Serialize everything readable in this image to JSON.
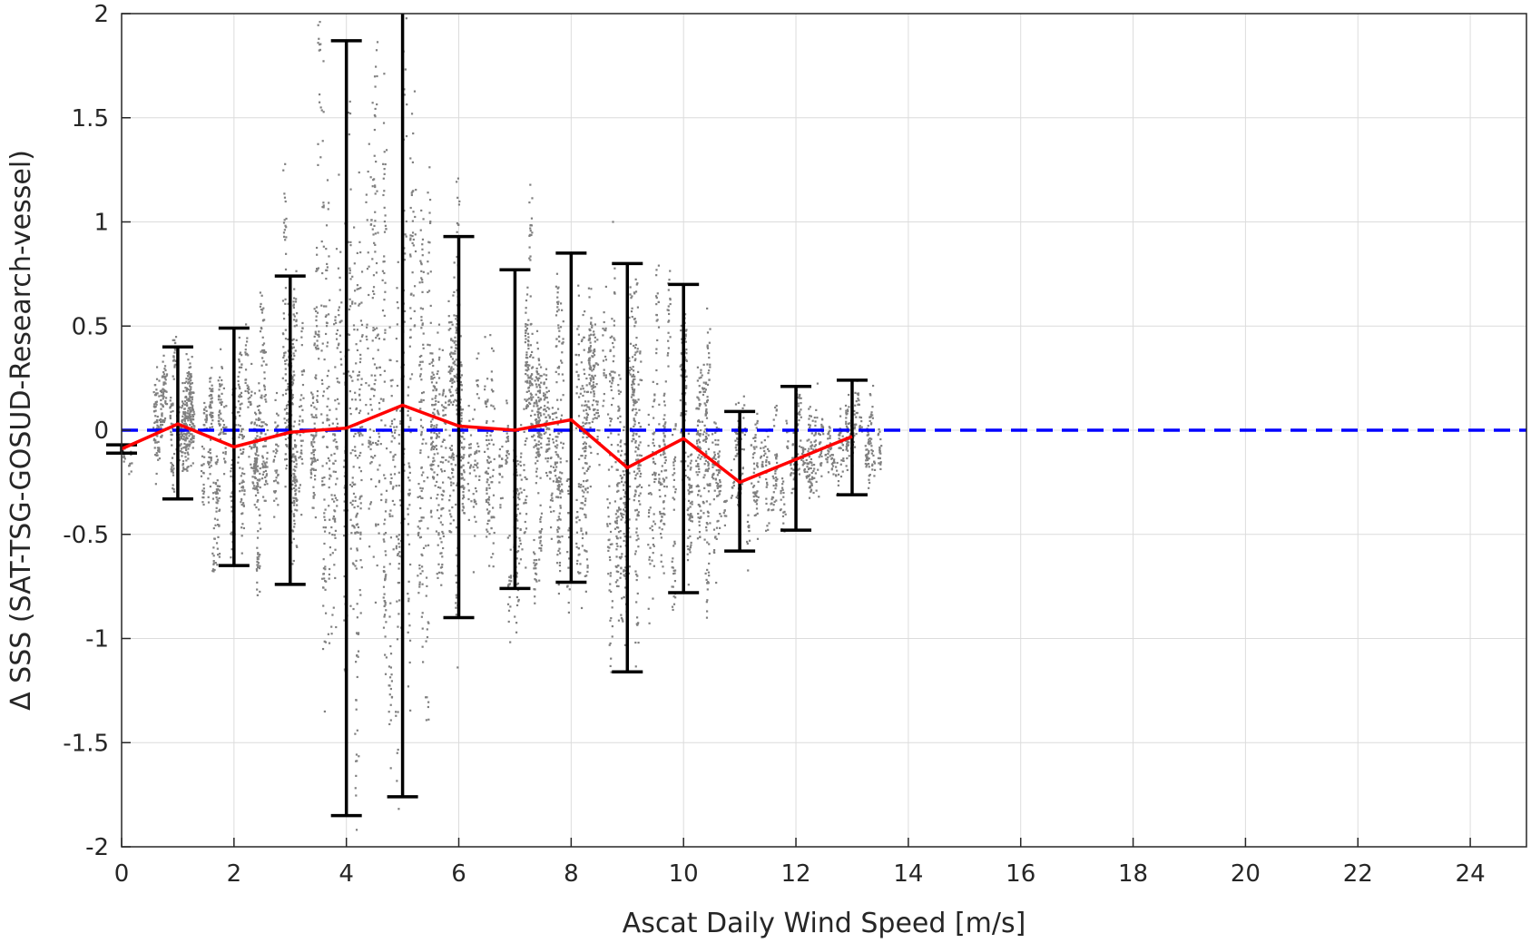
{
  "chart_data": {
    "type": "scatter",
    "title": "",
    "xlabel": "Ascat Daily Wind Speed [m/s]",
    "ylabel": "Δ SSS (SAT-TSG-GOSUD-Research-vessel)",
    "xlim": [
      0,
      25
    ],
    "ylim": [
      -2,
      2
    ],
    "x_ticks": [
      0,
      2,
      4,
      6,
      8,
      10,
      12,
      14,
      16,
      18,
      20,
      22,
      24
    ],
    "y_ticks": [
      -2,
      -1.5,
      -1,
      -0.5,
      0,
      0.5,
      1,
      1.5,
      2
    ],
    "x_tick_labels": [
      "0",
      "2",
      "4",
      "6",
      "8",
      "10",
      "12",
      "14",
      "16",
      "18",
      "20",
      "22",
      "24"
    ],
    "y_tick_labels": [
      "-2",
      "-1.5",
      "-1",
      "-0.5",
      "0",
      "0.5",
      "1",
      "1.5",
      "2"
    ],
    "grid": true,
    "zero_line": {
      "y": 0,
      "style": "dashed",
      "color": "#0000ff"
    },
    "colors": {
      "scatter": "#808080",
      "mean_line": "#ff0000",
      "error_bars": "#000000",
      "zero_line": "#0000ff",
      "grid": "#dcdcdc",
      "axes": "#262626"
    },
    "scatter_description_series": {
      "x_range": [
        0,
        13.5
      ],
      "points_per_bin_approx": "dense vertical streaks"
    },
    "mean_series": {
      "x": [
        0,
        1,
        2,
        3,
        4,
        5,
        6,
        7,
        8,
        9,
        10,
        11,
        12,
        13
      ],
      "y": [
        -0.09,
        0.03,
        -0.08,
        -0.01,
        0.01,
        0.12,
        0.02,
        0.0,
        0.05,
        -0.18,
        -0.04,
        -0.25,
        -0.14,
        -0.03
      ]
    },
    "error_bars": {
      "x": [
        0,
        1,
        2,
        3,
        4,
        5,
        6,
        7,
        8,
        9,
        10,
        11,
        12,
        13
      ],
      "lower": [
        -0.11,
        -0.33,
        -0.65,
        -0.74,
        -1.85,
        -1.76,
        -0.9,
        -0.76,
        -0.73,
        -1.16,
        -0.78,
        -0.58,
        -0.48,
        -0.31
      ],
      "upper": [
        -0.07,
        0.4,
        0.49,
        0.74,
        1.87,
        2.0,
        0.93,
        0.77,
        0.85,
        0.8,
        0.7,
        0.09,
        0.21,
        0.24
      ]
    }
  }
}
